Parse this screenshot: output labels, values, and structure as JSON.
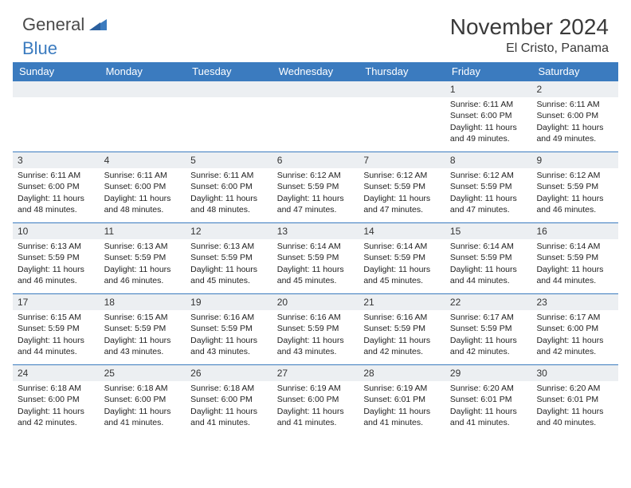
{
  "logo": {
    "text1": "General",
    "text2": "Blue"
  },
  "title": "November 2024",
  "location": "El Cristo, Panama",
  "colors": {
    "header_bg": "#3b7bbf",
    "header_text": "#ffffff",
    "daynum_bg": "#eceff2",
    "border": "#3b7bbf",
    "body_text": "#222222",
    "title_text": "#3a3a3a"
  },
  "dayHeaders": [
    "Sunday",
    "Monday",
    "Tuesday",
    "Wednesday",
    "Thursday",
    "Friday",
    "Saturday"
  ],
  "weeks": [
    [
      {
        "empty": true
      },
      {
        "empty": true
      },
      {
        "empty": true
      },
      {
        "empty": true
      },
      {
        "empty": true
      },
      {
        "n": 1,
        "sunrise": "6:11 AM",
        "sunset": "6:00 PM",
        "daylight": "11 hours and 49 minutes."
      },
      {
        "n": 2,
        "sunrise": "6:11 AM",
        "sunset": "6:00 PM",
        "daylight": "11 hours and 49 minutes."
      }
    ],
    [
      {
        "n": 3,
        "sunrise": "6:11 AM",
        "sunset": "6:00 PM",
        "daylight": "11 hours and 48 minutes."
      },
      {
        "n": 4,
        "sunrise": "6:11 AM",
        "sunset": "6:00 PM",
        "daylight": "11 hours and 48 minutes."
      },
      {
        "n": 5,
        "sunrise": "6:11 AM",
        "sunset": "6:00 PM",
        "daylight": "11 hours and 48 minutes."
      },
      {
        "n": 6,
        "sunrise": "6:12 AM",
        "sunset": "5:59 PM",
        "daylight": "11 hours and 47 minutes."
      },
      {
        "n": 7,
        "sunrise": "6:12 AM",
        "sunset": "5:59 PM",
        "daylight": "11 hours and 47 minutes."
      },
      {
        "n": 8,
        "sunrise": "6:12 AM",
        "sunset": "5:59 PM",
        "daylight": "11 hours and 47 minutes."
      },
      {
        "n": 9,
        "sunrise": "6:12 AM",
        "sunset": "5:59 PM",
        "daylight": "11 hours and 46 minutes."
      }
    ],
    [
      {
        "n": 10,
        "sunrise": "6:13 AM",
        "sunset": "5:59 PM",
        "daylight": "11 hours and 46 minutes."
      },
      {
        "n": 11,
        "sunrise": "6:13 AM",
        "sunset": "5:59 PM",
        "daylight": "11 hours and 46 minutes."
      },
      {
        "n": 12,
        "sunrise": "6:13 AM",
        "sunset": "5:59 PM",
        "daylight": "11 hours and 45 minutes."
      },
      {
        "n": 13,
        "sunrise": "6:14 AM",
        "sunset": "5:59 PM",
        "daylight": "11 hours and 45 minutes."
      },
      {
        "n": 14,
        "sunrise": "6:14 AM",
        "sunset": "5:59 PM",
        "daylight": "11 hours and 45 minutes."
      },
      {
        "n": 15,
        "sunrise": "6:14 AM",
        "sunset": "5:59 PM",
        "daylight": "11 hours and 44 minutes."
      },
      {
        "n": 16,
        "sunrise": "6:14 AM",
        "sunset": "5:59 PM",
        "daylight": "11 hours and 44 minutes."
      }
    ],
    [
      {
        "n": 17,
        "sunrise": "6:15 AM",
        "sunset": "5:59 PM",
        "daylight": "11 hours and 44 minutes."
      },
      {
        "n": 18,
        "sunrise": "6:15 AM",
        "sunset": "5:59 PM",
        "daylight": "11 hours and 43 minutes."
      },
      {
        "n": 19,
        "sunrise": "6:16 AM",
        "sunset": "5:59 PM",
        "daylight": "11 hours and 43 minutes."
      },
      {
        "n": 20,
        "sunrise": "6:16 AM",
        "sunset": "5:59 PM",
        "daylight": "11 hours and 43 minutes."
      },
      {
        "n": 21,
        "sunrise": "6:16 AM",
        "sunset": "5:59 PM",
        "daylight": "11 hours and 42 minutes."
      },
      {
        "n": 22,
        "sunrise": "6:17 AM",
        "sunset": "5:59 PM",
        "daylight": "11 hours and 42 minutes."
      },
      {
        "n": 23,
        "sunrise": "6:17 AM",
        "sunset": "6:00 PM",
        "daylight": "11 hours and 42 minutes."
      }
    ],
    [
      {
        "n": 24,
        "sunrise": "6:18 AM",
        "sunset": "6:00 PM",
        "daylight": "11 hours and 42 minutes."
      },
      {
        "n": 25,
        "sunrise": "6:18 AM",
        "sunset": "6:00 PM",
        "daylight": "11 hours and 41 minutes."
      },
      {
        "n": 26,
        "sunrise": "6:18 AM",
        "sunset": "6:00 PM",
        "daylight": "11 hours and 41 minutes."
      },
      {
        "n": 27,
        "sunrise": "6:19 AM",
        "sunset": "6:00 PM",
        "daylight": "11 hours and 41 minutes."
      },
      {
        "n": 28,
        "sunrise": "6:19 AM",
        "sunset": "6:01 PM",
        "daylight": "11 hours and 41 minutes."
      },
      {
        "n": 29,
        "sunrise": "6:20 AM",
        "sunset": "6:01 PM",
        "daylight": "11 hours and 41 minutes."
      },
      {
        "n": 30,
        "sunrise": "6:20 AM",
        "sunset": "6:01 PM",
        "daylight": "11 hours and 40 minutes."
      }
    ]
  ],
  "labels": {
    "sunrise": "Sunrise:",
    "sunset": "Sunset:",
    "daylight": "Daylight:"
  }
}
